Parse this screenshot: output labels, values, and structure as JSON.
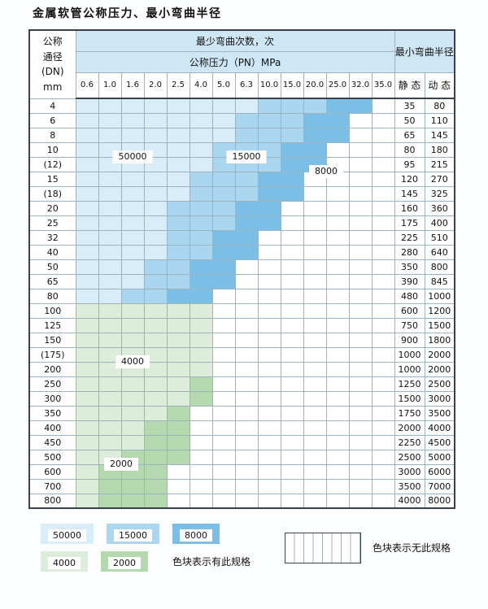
{
  "page": {
    "title": "金属软管公称压力、最小弯曲半径"
  },
  "colors": {
    "c50000": "#d9edf9",
    "c15000": "#abd6ef",
    "c8000": "#7cbfe6",
    "c4000": "#dcedd9",
    "c2000": "#b5d9ae",
    "header_blue": "#cfe7f5",
    "grid_border": "#9db4c0"
  },
  "table": {
    "header": {
      "dn_label_lines": [
        "公称",
        "通径",
        "(DN)",
        "mm"
      ],
      "bend_times_label": "最少弯曲次数，次",
      "pressure_label": "公称压力（PN）MPa",
      "pressure_columns": [
        "0.6",
        "1.0",
        "1.6",
        "2.0",
        "2.5",
        "4.0",
        "5.0",
        "6.3",
        "10.0",
        "15.0",
        "20.0",
        "25.0",
        "32.0",
        "35.0"
      ],
      "radius_label": "最小弯曲半径",
      "static_label": "静 态",
      "dynamic_label": "动 态"
    },
    "rows": [
      {
        "dn": "4",
        "bands": [
          [
            "50000",
            8
          ],
          [
            "15000",
            3
          ],
          [
            "8000",
            2
          ],
          [
            "none",
            1
          ]
        ],
        "static": "35",
        "dynamic": "80"
      },
      {
        "dn": "6",
        "bands": [
          [
            "50000",
            7
          ],
          [
            "15000",
            3
          ],
          [
            "8000",
            2
          ],
          [
            "none",
            2
          ]
        ],
        "static": "50",
        "dynamic": "110"
      },
      {
        "dn": "8",
        "bands": [
          [
            "50000",
            7
          ],
          [
            "15000",
            3
          ],
          [
            "8000",
            2
          ],
          [
            "none",
            2
          ]
        ],
        "static": "65",
        "dynamic": "145"
      },
      {
        "dn": "10",
        "bands": [
          [
            "50000",
            6
          ],
          [
            "15000",
            3
          ],
          [
            "8000",
            2
          ],
          [
            "none",
            3
          ]
        ],
        "static": "80",
        "dynamic": "180"
      },
      {
        "dn": "(12)",
        "bands": [
          [
            "50000",
            6
          ],
          [
            "15000",
            3
          ],
          [
            "8000",
            2
          ],
          [
            "none",
            3
          ]
        ],
        "static": "95",
        "dynamic": "215"
      },
      {
        "dn": "15",
        "bands": [
          [
            "50000",
            5
          ],
          [
            "15000",
            3
          ],
          [
            "8000",
            2
          ],
          [
            "none",
            4
          ]
        ],
        "static": "120",
        "dynamic": "270"
      },
      {
        "dn": "(18)",
        "bands": [
          [
            "50000",
            5
          ],
          [
            "15000",
            3
          ],
          [
            "8000",
            2
          ],
          [
            "none",
            4
          ]
        ],
        "static": "145",
        "dynamic": "325"
      },
      {
        "dn": "20",
        "bands": [
          [
            "50000",
            4
          ],
          [
            "15000",
            3
          ],
          [
            "8000",
            2
          ],
          [
            "none",
            5
          ]
        ],
        "static": "160",
        "dynamic": "360"
      },
      {
        "dn": "25",
        "bands": [
          [
            "50000",
            4
          ],
          [
            "15000",
            3
          ],
          [
            "8000",
            2
          ],
          [
            "none",
            5
          ]
        ],
        "static": "175",
        "dynamic": "400"
      },
      {
        "dn": "32",
        "bands": [
          [
            "50000",
            4
          ],
          [
            "15000",
            2
          ],
          [
            "8000",
            2
          ],
          [
            "none",
            6
          ]
        ],
        "static": "225",
        "dynamic": "510"
      },
      {
        "dn": "40",
        "bands": [
          [
            "50000",
            4
          ],
          [
            "15000",
            2
          ],
          [
            "8000",
            2
          ],
          [
            "none",
            6
          ]
        ],
        "static": "280",
        "dynamic": "640"
      },
      {
        "dn": "50",
        "bands": [
          [
            "50000",
            3
          ],
          [
            "15000",
            2
          ],
          [
            "8000",
            2
          ],
          [
            "none",
            7
          ]
        ],
        "static": "350",
        "dynamic": "800"
      },
      {
        "dn": "65",
        "bands": [
          [
            "50000",
            3
          ],
          [
            "15000",
            2
          ],
          [
            "8000",
            2
          ],
          [
            "none",
            7
          ]
        ],
        "static": "390",
        "dynamic": "845"
      },
      {
        "dn": "80",
        "bands": [
          [
            "50000",
            2
          ],
          [
            "15000",
            2
          ],
          [
            "8000",
            2
          ],
          [
            "none",
            8
          ]
        ],
        "static": "480",
        "dynamic": "1000"
      },
      {
        "dn": "100",
        "bands": [
          [
            "4000",
            6
          ],
          [
            "none",
            8
          ]
        ],
        "static": "600",
        "dynamic": "1200"
      },
      {
        "dn": "125",
        "bands": [
          [
            "4000",
            6
          ],
          [
            "none",
            8
          ]
        ],
        "static": "750",
        "dynamic": "1500"
      },
      {
        "dn": "150",
        "bands": [
          [
            "4000",
            6
          ],
          [
            "none",
            8
          ]
        ],
        "static": "900",
        "dynamic": "1800"
      },
      {
        "dn": "(175)",
        "bands": [
          [
            "4000",
            6
          ],
          [
            "none",
            8
          ]
        ],
        "static": "1000",
        "dynamic": "2000"
      },
      {
        "dn": "200",
        "bands": [
          [
            "4000",
            6
          ],
          [
            "none",
            8
          ]
        ],
        "static": "1000",
        "dynamic": "2000"
      },
      {
        "dn": "250",
        "bands": [
          [
            "4000",
            5
          ],
          [
            "2000",
            1
          ],
          [
            "none",
            8
          ]
        ],
        "static": "1250",
        "dynamic": "2500"
      },
      {
        "dn": "300",
        "bands": [
          [
            "4000",
            5
          ],
          [
            "2000",
            1
          ],
          [
            "none",
            8
          ]
        ],
        "static": "1500",
        "dynamic": "3000"
      },
      {
        "dn": "350",
        "bands": [
          [
            "4000",
            4
          ],
          [
            "2000",
            1
          ],
          [
            "none",
            9
          ]
        ],
        "static": "1750",
        "dynamic": "3500"
      },
      {
        "dn": "400",
        "bands": [
          [
            "4000",
            3
          ],
          [
            "2000",
            2
          ],
          [
            "none",
            9
          ]
        ],
        "static": "2000",
        "dynamic": "4000"
      },
      {
        "dn": "450",
        "bands": [
          [
            "4000",
            3
          ],
          [
            "2000",
            2
          ],
          [
            "none",
            9
          ]
        ],
        "static": "2250",
        "dynamic": "4500"
      },
      {
        "dn": "500",
        "bands": [
          [
            "4000",
            2
          ],
          [
            "2000",
            3
          ],
          [
            "none",
            9
          ]
        ],
        "static": "2500",
        "dynamic": "5000"
      },
      {
        "dn": "600",
        "bands": [
          [
            "4000",
            1
          ],
          [
            "2000",
            3
          ],
          [
            "none",
            10
          ]
        ],
        "static": "3000",
        "dynamic": "6000"
      },
      {
        "dn": "700",
        "bands": [
          [
            "4000",
            1
          ],
          [
            "2000",
            3
          ],
          [
            "none",
            10
          ]
        ],
        "static": "3500",
        "dynamic": "7000"
      },
      {
        "dn": "800",
        "bands": [
          [
            "4000",
            1
          ],
          [
            "2000",
            3
          ],
          [
            "none",
            10
          ]
        ],
        "static": "4000",
        "dynamic": "8000"
      }
    ]
  },
  "overlay_labels": [
    {
      "text": "50000",
      "row_start": 3,
      "row_end": 4,
      "col_start": 1,
      "col_end": 3
    },
    {
      "text": "15000",
      "row_start": 3,
      "row_end": 4,
      "col_start": 6,
      "col_end": 8
    },
    {
      "text": "8000",
      "row_start": 4,
      "row_end": 5,
      "col_start": 10,
      "col_end": 11
    },
    {
      "text": "4000",
      "row_start": 17,
      "row_end": 18,
      "col_start": 1,
      "col_end": 3
    },
    {
      "text": "2000",
      "row_start": 24,
      "row_end": 25,
      "col_start": 1,
      "col_end": 2
    }
  ],
  "legend": {
    "row1": [
      {
        "label": "50000",
        "color": "#d9edf9"
      },
      {
        "label": "15000",
        "color": "#abd6ef"
      },
      {
        "label": "8000",
        "color": "#7cbfe6"
      }
    ],
    "row2": [
      {
        "label": "4000",
        "color": "#dcedd9"
      },
      {
        "label": "2000",
        "color": "#b5d9ae"
      }
    ],
    "has_spec_text": "色块表示有此规格",
    "no_spec_text": "色块表示无此规格"
  }
}
